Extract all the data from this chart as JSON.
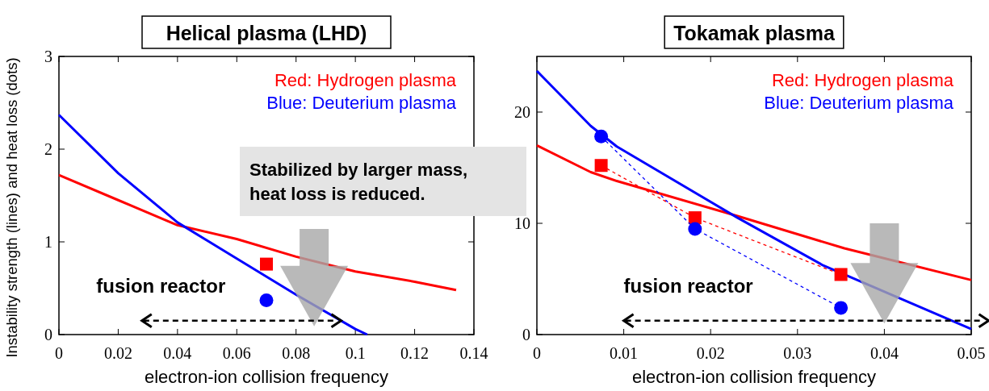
{
  "chart_data": [
    {
      "type": "line",
      "title": "Helical plasma (LHD)",
      "xlabel": "electron-ion collision frequency",
      "ylabel": "Instability strength (lines) and heat loss (dots)",
      "xlim": [
        0,
        0.14
      ],
      "ylim": [
        0,
        3
      ],
      "xticks": [
        0,
        0.02,
        0.04,
        0.06,
        0.08,
        0.1,
        0.12,
        0.14
      ],
      "yticks": [
        0,
        1,
        2,
        3
      ],
      "legend": "top right",
      "annotations": [
        "Stabilized by larger mass,\nheat loss is reduced.",
        "fusion reactor"
      ],
      "series": [
        {
          "name": "Red: Hydrogen plasma",
          "color": "#ff0000",
          "x": [
            0,
            0.02,
            0.04,
            0.06,
            0.08,
            0.1,
            0.12,
            0.134
          ],
          "values": [
            1.72,
            1.45,
            1.18,
            1.03,
            0.84,
            0.68,
            0.57,
            0.48
          ]
        },
        {
          "name": "Blue: Deuterium plasma",
          "color": "#0000ff",
          "x": [
            0,
            0.02,
            0.04,
            0.06,
            0.08,
            0.1,
            0.104
          ],
          "values": [
            2.37,
            1.74,
            1.21,
            0.82,
            0.43,
            0.06,
            0
          ]
        },
        {
          "type": "scatter",
          "marker": "square",
          "color": "#ff0000",
          "x": [
            0.07
          ],
          "values": [
            0.76
          ]
        },
        {
          "type": "scatter",
          "marker": "circle",
          "color": "#0000ff",
          "x": [
            0.07
          ],
          "values": [
            0.37
          ]
        }
      ]
    },
    {
      "type": "line",
      "title": "Tokamak plasma",
      "xlabel": "electron-ion collision frequency",
      "xlim": [
        0,
        0.05
      ],
      "ylim": [
        0,
        25
      ],
      "xticks": [
        0,
        0.01,
        0.02,
        0.03,
        0.04,
        0.05
      ],
      "yticks": [
        0,
        10,
        20
      ],
      "legend": "top right",
      "annotations": [
        "fusion reactor"
      ],
      "series": [
        {
          "name": "Red: Hydrogen plasma",
          "color": "#ff0000",
          "x": [
            0,
            0.0062,
            0.0092,
            0.0231,
            0.0354,
            0.05
          ],
          "values": [
            17.0,
            14.6,
            13.8,
            10.65,
            7.75,
            4.9
          ]
        },
        {
          "name": "Blue: Deuterium plasma",
          "color": "#0000ff",
          "x": [
            0,
            0.0062,
            0.0092,
            0.0231,
            0.033,
            0.05
          ],
          "values": [
            23.7,
            18.75,
            16.9,
            10.5,
            6.2,
            0.5
          ]
        },
        {
          "type": "line",
          "marker": "square",
          "line_style": "dashed",
          "color": "#ff0000",
          "x": [
            0.0074,
            0.0182,
            0.035
          ],
          "values": [
            15.2,
            10.5,
            5.4
          ]
        },
        {
          "type": "line",
          "marker": "circle",
          "line_style": "dashed",
          "color": "#0000ff",
          "x": [
            0.0074,
            0.0182,
            0.035
          ],
          "values": [
            17.8,
            9.5,
            2.4
          ]
        }
      ]
    }
  ]
}
